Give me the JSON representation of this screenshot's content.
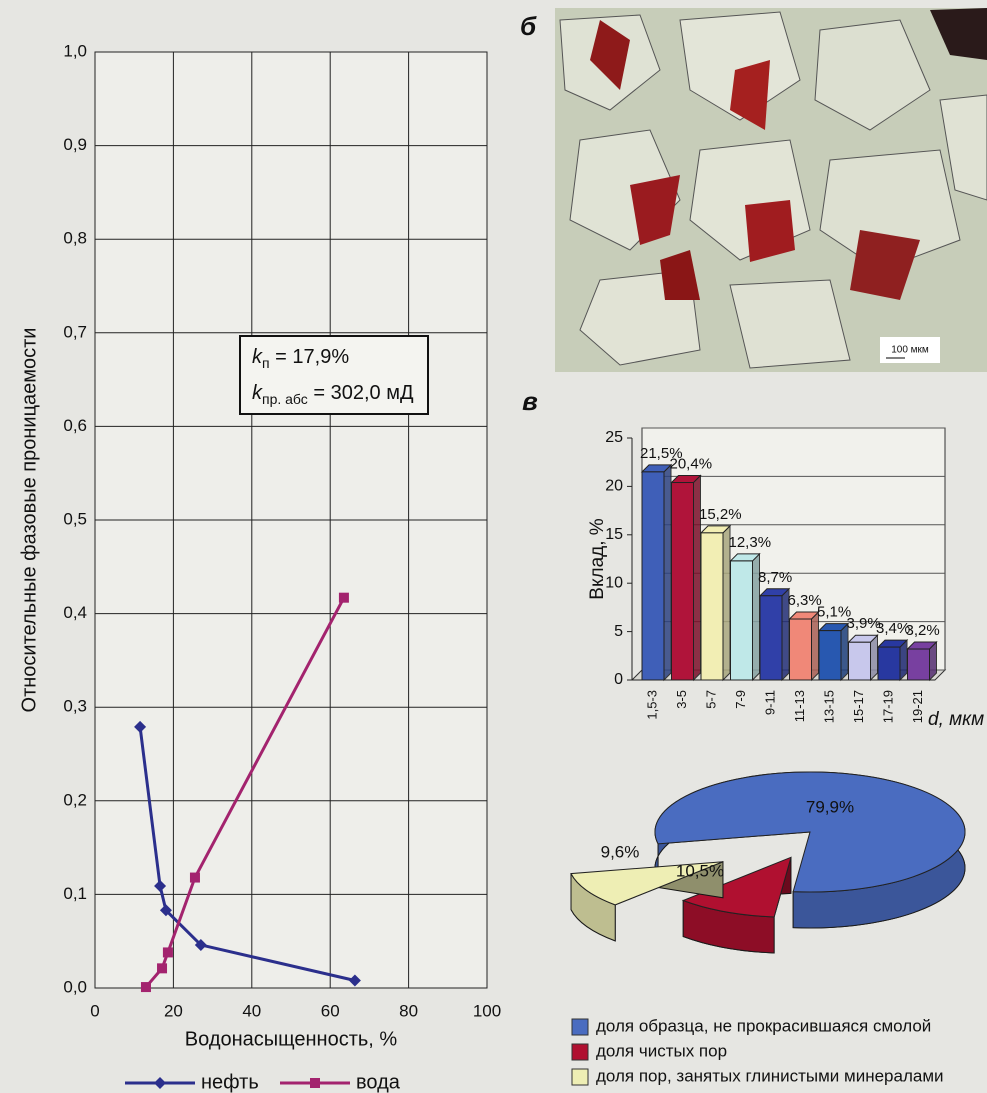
{
  "chart_data": [
    {
      "type": "line",
      "xlabel": "Водонасыщенность, %",
      "ylabel": "Относительные фазовые проницаемости",
      "xlim": [
        0,
        100
      ],
      "xticks": [
        0,
        20,
        40,
        60,
        80,
        100
      ],
      "ylim": [
        0,
        1
      ],
      "yticks": [
        {
          "value": 0,
          "label": "0,0"
        },
        {
          "value": 0.1,
          "label": "0,1"
        },
        {
          "value": 0.2,
          "label": "0,2"
        },
        {
          "value": 0.3,
          "label": "0,3"
        },
        {
          "value": 0.4,
          "label": "0,4"
        },
        {
          "value": 0.5,
          "label": "0,5"
        },
        {
          "value": 0.6,
          "label": "0,6"
        },
        {
          "value": 0.7,
          "label": "0,7"
        },
        {
          "value": 0.8,
          "label": "0,8"
        },
        {
          "value": 0.9,
          "label": "0,9"
        },
        {
          "value": 1,
          "label": "1,0"
        }
      ],
      "grid": true,
      "legend": "bottom",
      "series": [
        {
          "name": "нефть",
          "color": "#2b2f8c",
          "marker": "diamond",
          "x": [
            11.5,
            16.6,
            18.1,
            27,
            66.3
          ],
          "values": [
            0.279,
            0.109,
            0.083,
            0.046,
            0.008
          ]
        },
        {
          "name": "вода",
          "color": "#a3236e",
          "marker": "square",
          "x": [
            13,
            17.1,
            18.6,
            25.5,
            63.5
          ],
          "values": [
            0.001,
            0.021,
            0.038,
            0.118,
            0.417
          ]
        }
      ],
      "annotations": [
        {
          "symbol": "k",
          "subscript": "п",
          "text": " = 17,9%"
        },
        {
          "symbol": "k",
          "subscript": "пр. абс",
          "text": " = 302,0 мД"
        }
      ]
    },
    {
      "type": "bar",
      "panel_label": "в",
      "ylabel": "Вклад, %",
      "xlabel": "d, мкм",
      "ylim": [
        0,
        25
      ],
      "yticks": [
        0,
        5,
        10,
        15,
        20,
        25
      ],
      "categories": [
        "1,5-3",
        "3-5",
        "5-7",
        "7-9",
        "9-11",
        "11-13",
        "13-15",
        "15-17",
        "17-19",
        "19-21"
      ],
      "values": [
        21.5,
        20.4,
        15.2,
        12.3,
        8.7,
        6.3,
        5.1,
        3.9,
        3.4,
        3.2
      ],
      "value_labels": [
        "21,5%",
        "20,4%",
        "15,2%",
        "12,3%",
        "8,7%",
        "6,3%",
        "5,1%",
        "3,9%",
        "3,4%",
        "3,2%"
      ],
      "colors": [
        "#3f5fb8",
        "#b0143a",
        "#f2eeb4",
        "#bfe8e8",
        "#3040a8",
        "#f08878",
        "#2858b0",
        "#c8c8ec",
        "#2838a0",
        "#7840a0"
      ]
    },
    {
      "type": "pie",
      "categories": [
        "доля образца, не прокрасившаяся смолой",
        "доля чистых пор",
        "доля пор, занятых глинистыми минералами"
      ],
      "values": [
        79.9,
        10.5,
        9.6
      ],
      "value_labels": [
        "79,9%",
        "10,5%",
        "9,6%"
      ],
      "colors": [
        "#4a6cc0",
        "#b01030",
        "#eeeeb4"
      ],
      "legend": "bottom"
    }
  ],
  "photo": {
    "label": "б",
    "scale_bar": "100 мкм"
  }
}
